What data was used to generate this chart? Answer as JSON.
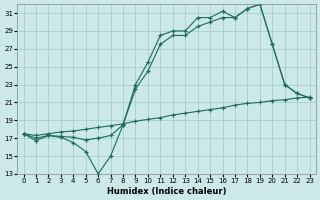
{
  "background_color": "#cce8e8",
  "grid_color": "#99cccc",
  "line_color": "#1a6b5a",
  "xlabel": "Humidex (Indice chaleur)",
  "xlim": [
    -0.5,
    23.5
  ],
  "ylim": [
    13,
    32
  ],
  "yticks": [
    13,
    15,
    17,
    19,
    21,
    23,
    25,
    27,
    29,
    31
  ],
  "xticks": [
    0,
    1,
    2,
    3,
    4,
    5,
    6,
    7,
    8,
    9,
    10,
    11,
    12,
    13,
    14,
    15,
    16,
    17,
    18,
    19,
    20,
    21,
    22,
    23
  ],
  "line1_x": [
    0,
    1,
    2,
    3,
    4,
    5,
    6,
    7,
    8,
    9,
    10,
    11,
    12,
    13,
    14,
    15,
    16,
    17,
    18,
    19,
    20,
    21,
    22,
    23
  ],
  "line1_y": [
    17.5,
    16.7,
    17.3,
    17.1,
    16.5,
    15.5,
    13.0,
    15.0,
    18.5,
    23.0,
    25.5,
    28.5,
    29.0,
    29.0,
    30.5,
    30.5,
    31.2,
    30.5,
    31.5,
    32.0,
    27.5,
    23.0,
    22.0,
    21.5
  ],
  "line2_x": [
    0,
    1,
    2,
    3,
    4,
    5,
    6,
    7,
    8,
    9,
    10,
    11,
    12,
    13,
    14,
    15,
    16,
    17,
    18,
    19,
    20,
    21,
    22,
    23
  ],
  "line2_y": [
    17.5,
    17.0,
    17.3,
    17.2,
    17.1,
    16.8,
    17.0,
    17.3,
    18.5,
    22.5,
    24.5,
    27.5,
    28.5,
    28.5,
    29.5,
    30.0,
    30.5,
    30.5,
    31.5,
    32.0,
    27.5,
    23.0,
    22.0,
    21.5
  ],
  "line3_x": [
    0,
    1,
    2,
    3,
    4,
    5,
    6,
    7,
    8,
    9,
    10,
    11,
    12,
    13,
    14,
    15,
    16,
    17,
    18,
    19,
    20,
    21,
    22,
    23
  ],
  "line3_y": [
    17.5,
    17.3,
    17.5,
    17.7,
    17.8,
    18.0,
    18.2,
    18.4,
    18.6,
    18.9,
    19.1,
    19.3,
    19.6,
    19.8,
    20.0,
    20.2,
    20.4,
    20.7,
    20.9,
    21.0,
    21.2,
    21.3,
    21.5,
    21.6
  ]
}
